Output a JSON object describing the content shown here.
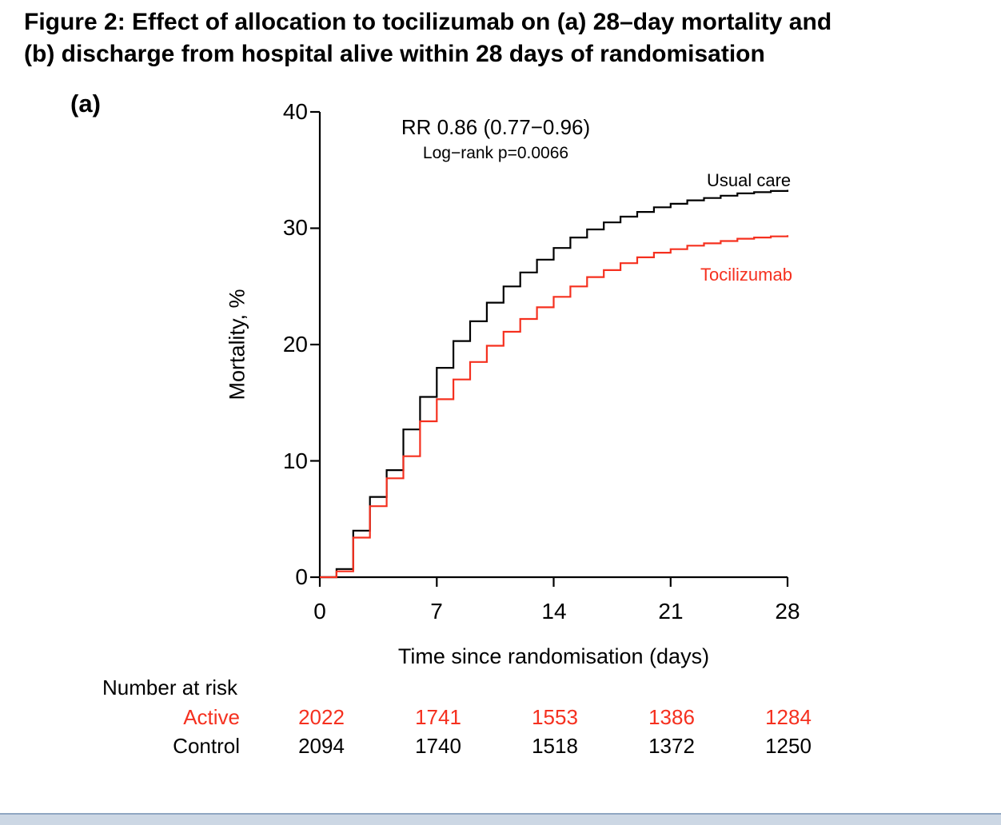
{
  "figure": {
    "title_lines": [
      "Figure 2: Effect of allocation to tocilizumab on (a) 28–day mortality and",
      "(b) discharge from hospital alive within 28 days of randomisation"
    ],
    "panel_label": "(a)"
  },
  "annotations": {
    "rr_text": "RR 0.86 (0.77−0.96)",
    "logrank_text": "Log−rank p=0.0066"
  },
  "chart_data": {
    "type": "line",
    "subtype": "step-kaplan-meier-cumulative-incidence",
    "xlabel": "Time since randomisation (days)",
    "ylabel": "Mortality, %",
    "xlim": [
      0,
      28
    ],
    "ylim": [
      0,
      40
    ],
    "xticks": [
      0,
      7,
      14,
      21,
      28
    ],
    "yticks": [
      0,
      10,
      20,
      30,
      40
    ],
    "grid": false,
    "legend_position": "labels-at-line-ends",
    "days": [
      0,
      1,
      2,
      3,
      4,
      5,
      6,
      7,
      8,
      9,
      10,
      11,
      12,
      13,
      14,
      15,
      16,
      17,
      18,
      19,
      20,
      21,
      22,
      23,
      24,
      25,
      26,
      27,
      28
    ],
    "series": [
      {
        "name": "Usual care",
        "color": "#000000",
        "mortality_pct": [
          0,
          0.7,
          4.0,
          6.9,
          9.2,
          12.7,
          15.5,
          18.0,
          20.3,
          22.0,
          23.6,
          25.0,
          26.2,
          27.3,
          28.3,
          29.2,
          29.9,
          30.5,
          31.0,
          31.4,
          31.8,
          32.1,
          32.4,
          32.6,
          32.8,
          33.0,
          33.1,
          33.2,
          33.3
        ]
      },
      {
        "name": "Tocilizumab",
        "color": "#f5301f",
        "mortality_pct": [
          0,
          0.5,
          3.4,
          6.1,
          8.5,
          10.4,
          13.4,
          15.3,
          17.0,
          18.5,
          19.9,
          21.1,
          22.2,
          23.2,
          24.1,
          25.0,
          25.8,
          26.4,
          27.0,
          27.5,
          27.9,
          28.2,
          28.5,
          28.7,
          28.9,
          29.1,
          29.2,
          29.3,
          29.4
        ]
      }
    ]
  },
  "risk_table": {
    "heading": "Number at risk",
    "timepoints": [
      0,
      7,
      14,
      21,
      28
    ],
    "rows": [
      {
        "label": "Active",
        "color": "#f5301f",
        "values": [
          "2022",
          "1741",
          "1553",
          "1386",
          "1284"
        ]
      },
      {
        "label": "Control",
        "color": "#000000",
        "values": [
          "2094",
          "1740",
          "1518",
          "1372",
          "1250"
        ]
      }
    ]
  },
  "colors": {
    "axis": "#000000",
    "usual_care": "#000000",
    "tocilizumab": "#f5301f",
    "bottom_bar_fill": "#ccd7e4",
    "bottom_bar_edge": "#8fa6c2"
  }
}
